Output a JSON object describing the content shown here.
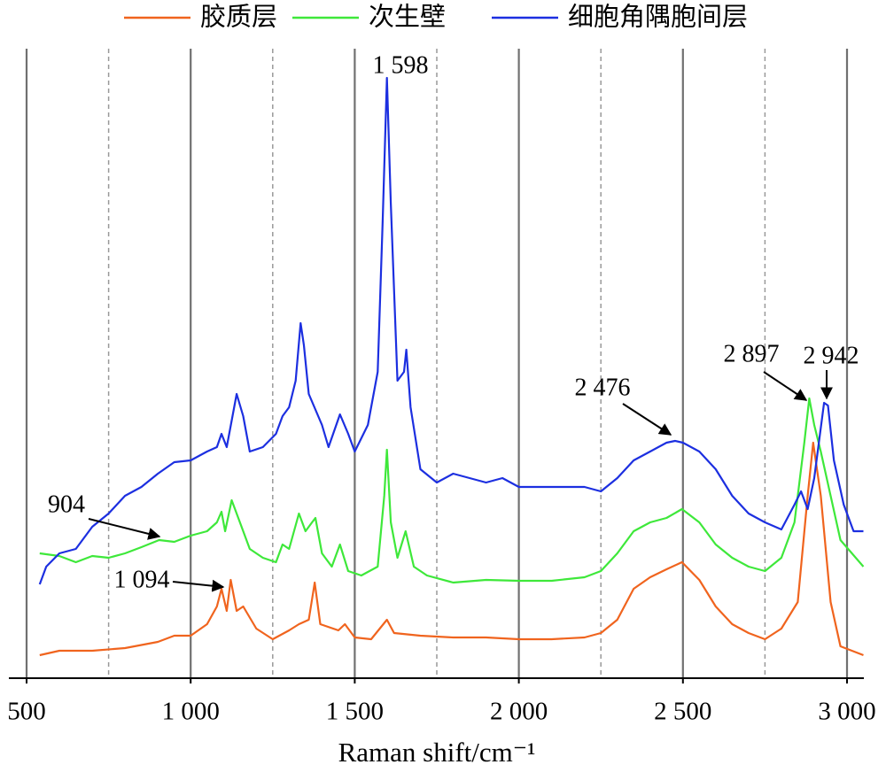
{
  "chart_data": {
    "type": "line",
    "xlabel": "Raman shift/cm⁻¹",
    "xlim": [
      500,
      3000
    ],
    "xticks": [
      500,
      {
        "value": 1000,
        "label": "1 000"
      },
      {
        "value": 1500,
        "label": "1 500"
      },
      {
        "value": 2000,
        "label": "2 000"
      },
      {
        "value": 2500,
        "label": "2 500"
      },
      {
        "value": 3000,
        "label": "3 000"
      }
    ],
    "xminorticks": [
      750,
      1250,
      1750,
      2250,
      2750
    ],
    "ylim": [
      0,
      711
    ],
    "grid": true,
    "legend": "top",
    "annotations": [
      "1 598",
      "904",
      "1 094",
      "2 476",
      "2 897",
      "2 942"
    ],
    "series": [
      {
        "name": "胶质层",
        "color": "#f0641e",
        "x": [
          540,
          600,
          700,
          800,
          900,
          950,
          1000,
          1050,
          1080,
          1094,
          1110,
          1122,
          1140,
          1160,
          1200,
          1250,
          1300,
          1330,
          1360,
          1378,
          1395,
          1450,
          1470,
          1500,
          1550,
          1598,
          1620,
          1700,
          1800,
          1900,
          2000,
          2100,
          2200,
          2250,
          2300,
          2350,
          2400,
          2450,
          2497,
          2550,
          2600,
          2650,
          2700,
          2750,
          2800,
          2850,
          2880,
          2897,
          2920,
          2950,
          2980,
          3050
        ],
        "values": [
          26,
          31,
          31,
          34,
          41,
          48,
          48,
          61,
          81,
          101,
          76,
          111,
          76,
          81,
          56,
          44,
          54,
          61,
          66,
          108,
          61,
          54,
          61,
          46,
          44,
          66,
          51,
          48,
          46,
          46,
          44,
          44,
          46,
          51,
          66,
          101,
          114,
          123,
          131,
          111,
          81,
          61,
          51,
          44,
          56,
          86,
          206,
          266,
          206,
          86,
          36,
          26
        ]
      },
      {
        "name": "次生壁",
        "color": "#3ee83a",
        "x": [
          540,
          600,
          650,
          700,
          750,
          800,
          850,
          904,
          950,
          1000,
          1050,
          1080,
          1094,
          1105,
          1125,
          1150,
          1180,
          1220,
          1260,
          1280,
          1300,
          1330,
          1350,
          1370,
          1380,
          1400,
          1430,
          1455,
          1480,
          1520,
          1570,
          1590,
          1598,
          1610,
          1630,
          1655,
          1680,
          1720,
          1800,
          1900,
          2000,
          2100,
          2200,
          2250,
          2300,
          2350,
          2400,
          2450,
          2497,
          2550,
          2600,
          2650,
          2700,
          2750,
          2800,
          2840,
          2870,
          2885,
          2900,
          2920,
          2950,
          2980,
          3050
        ],
        "values": [
          141,
          138,
          131,
          138,
          136,
          141,
          148,
          156,
          154,
          161,
          166,
          176,
          188,
          166,
          201,
          176,
          146,
          136,
          131,
          151,
          146,
          186,
          166,
          176,
          181,
          141,
          126,
          151,
          121,
          116,
          126,
          206,
          258,
          176,
          136,
          166,
          126,
          116,
          108,
          111,
          110,
          110,
          114,
          121,
          141,
          166,
          176,
          181,
          191,
          176,
          151,
          136,
          126,
          121,
          136,
          176,
          266,
          316,
          286,
          256,
          206,
          156,
          126
        ]
      },
      {
        "name": "细胞角隅胞间层",
        "color": "#1c2fe0",
        "x": [
          540,
          560,
          600,
          650,
          700,
          750,
          800,
          850,
          900,
          950,
          1000,
          1050,
          1080,
          1094,
          1110,
          1140,
          1160,
          1180,
          1220,
          1260,
          1280,
          1300,
          1320,
          1335,
          1345,
          1360,
          1400,
          1420,
          1455,
          1480,
          1500,
          1540,
          1570,
          1585,
          1598,
          1610,
          1630,
          1650,
          1657,
          1670,
          1700,
          1750,
          1800,
          1900,
          1950,
          2000,
          2100,
          2200,
          2250,
          2300,
          2350,
          2400,
          2450,
          2476,
          2500,
          2550,
          2600,
          2650,
          2700,
          2750,
          2800,
          2840,
          2860,
          2880,
          2900,
          2930,
          2942,
          2960,
          2990,
          3020,
          3050
        ],
        "values": [
          106,
          126,
          141,
          146,
          171,
          186,
          206,
          216,
          231,
          244,
          246,
          256,
          261,
          276,
          261,
          321,
          296,
          256,
          261,
          276,
          296,
          306,
          336,
          401,
          376,
          321,
          286,
          261,
          298,
          276,
          256,
          286,
          346,
          516,
          678,
          536,
          336,
          346,
          371,
          306,
          236,
          221,
          231,
          221,
          226,
          216,
          216,
          216,
          211,
          226,
          246,
          256,
          266,
          268,
          266,
          256,
          236,
          206,
          186,
          176,
          168,
          196,
          211,
          191,
          226,
          311,
          308,
          246,
          196,
          166,
          166
        ]
      }
    ]
  }
}
